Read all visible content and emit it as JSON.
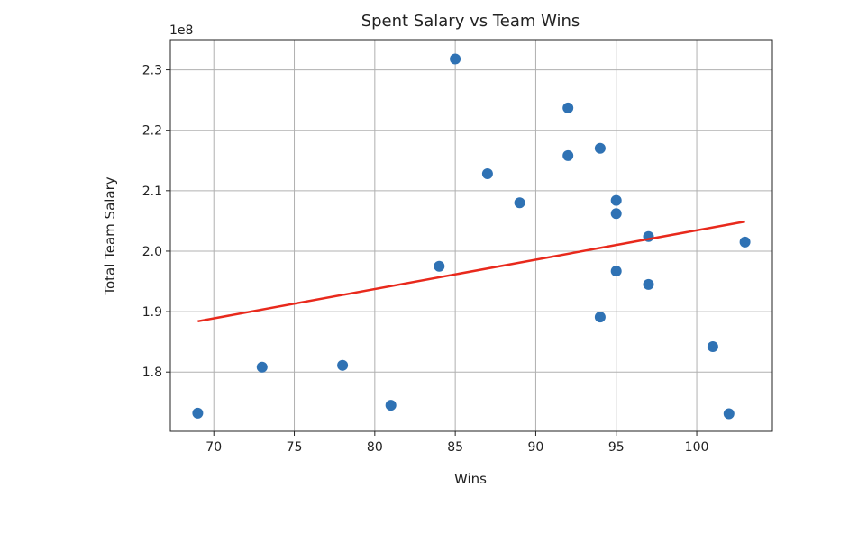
{
  "chart_data": {
    "type": "scatter",
    "title": "Spent Salary vs Team Wins",
    "xlabel": "Wins",
    "ylabel": "Total Team Salary",
    "y_scale_label": "1e8",
    "xlim": [
      67.3,
      104.7
    ],
    "ylim": [
      1.702,
      2.35
    ],
    "x_ticks": [
      70,
      75,
      80,
      85,
      90,
      95,
      100
    ],
    "x_tick_labels": [
      "70",
      "75",
      "80",
      "85",
      "90",
      "95",
      "100"
    ],
    "y_ticks": [
      1.8,
      1.9,
      2.0,
      2.1,
      2.2,
      2.3
    ],
    "y_tick_labels": [
      "1.8",
      "1.9",
      "2.0",
      "2.1",
      "2.2",
      "2.3"
    ],
    "grid": true,
    "series": [
      {
        "type": "scatter",
        "color": "#2f72b4",
        "points": [
          {
            "x": 69,
            "y": 1.732
          },
          {
            "x": 73,
            "y": 1.808
          },
          {
            "x": 78,
            "y": 1.811
          },
          {
            "x": 81,
            "y": 1.745
          },
          {
            "x": 84,
            "y": 1.975
          },
          {
            "x": 85,
            "y": 2.318
          },
          {
            "x": 87,
            "y": 2.128
          },
          {
            "x": 89,
            "y": 2.08
          },
          {
            "x": 92,
            "y": 2.237
          },
          {
            "x": 92,
            "y": 2.158
          },
          {
            "x": 94,
            "y": 2.17
          },
          {
            "x": 94,
            "y": 1.891
          },
          {
            "x": 95,
            "y": 2.084
          },
          {
            "x": 95,
            "y": 2.062
          },
          {
            "x": 95,
            "y": 1.967
          },
          {
            "x": 97,
            "y": 2.024
          },
          {
            "x": 97,
            "y": 1.945
          },
          {
            "x": 101,
            "y": 1.842
          },
          {
            "x": 102,
            "y": 1.731
          },
          {
            "x": 103,
            "y": 2.015
          }
        ]
      },
      {
        "type": "line",
        "color": "#e8291c",
        "points": [
          {
            "x": 69,
            "y": 1.884
          },
          {
            "x": 103,
            "y": 2.049
          }
        ]
      }
    ]
  }
}
